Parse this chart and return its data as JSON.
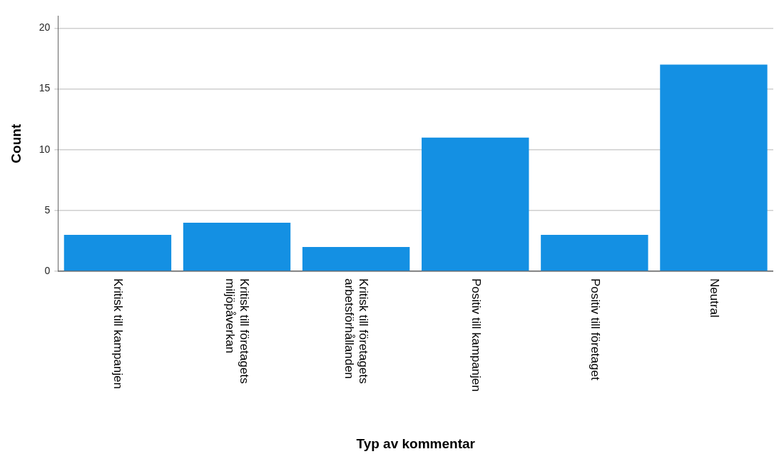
{
  "chart_data": {
    "type": "bar",
    "xlabel": "Typ av kommentar",
    "ylabel": "Count",
    "categories": [
      "Kritisk till kampanjen",
      "Kritisk till företagets miljöpåverkan",
      "Kritisk till företagets arbetsförhållanden",
      "Positiv till kampanjen",
      "Positiv till företaget",
      "Neutral"
    ],
    "values": [
      3,
      4,
      2,
      11,
      3,
      17
    ],
    "color": "#1490e3",
    "ylim": [
      0,
      21
    ],
    "yticks": [
      0,
      5,
      10,
      15,
      20
    ],
    "grid": "y",
    "legend": false
  }
}
